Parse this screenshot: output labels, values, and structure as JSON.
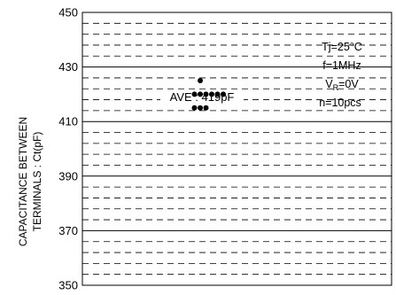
{
  "chart_data": {
    "type": "scatter",
    "title": "",
    "ylabel_line1": "CAPACITANCE BETWEEN",
    "ylabel_line2": "TERMINALS : Ct(pF)",
    "xlabel": "",
    "ylim": [
      350,
      450
    ],
    "y_major_ticks": [
      350,
      370,
      390,
      410,
      430,
      450
    ],
    "y_minor_step": 4,
    "grid": true,
    "conditions": {
      "line1": "Tj=25°C",
      "line2": "f=1MHz",
      "line3_main": "V",
      "line3_sub": "R",
      "line3_tail": "=0V",
      "line4": "n=10pcs"
    },
    "average": {
      "label": "AVE : 419pF",
      "value": 419
    },
    "points": [
      {
        "x": 0,
        "y": 425
      },
      {
        "x": -1,
        "y": 420
      },
      {
        "x": 0,
        "y": 420
      },
      {
        "x": 1,
        "y": 420
      },
      {
        "x": 2,
        "y": 420
      },
      {
        "x": 3,
        "y": 420
      },
      {
        "x": 4,
        "y": 420
      },
      {
        "x": 0,
        "y": 415
      },
      {
        "x": 1,
        "y": 415
      },
      {
        "x": -1,
        "y": 415
      }
    ]
  }
}
